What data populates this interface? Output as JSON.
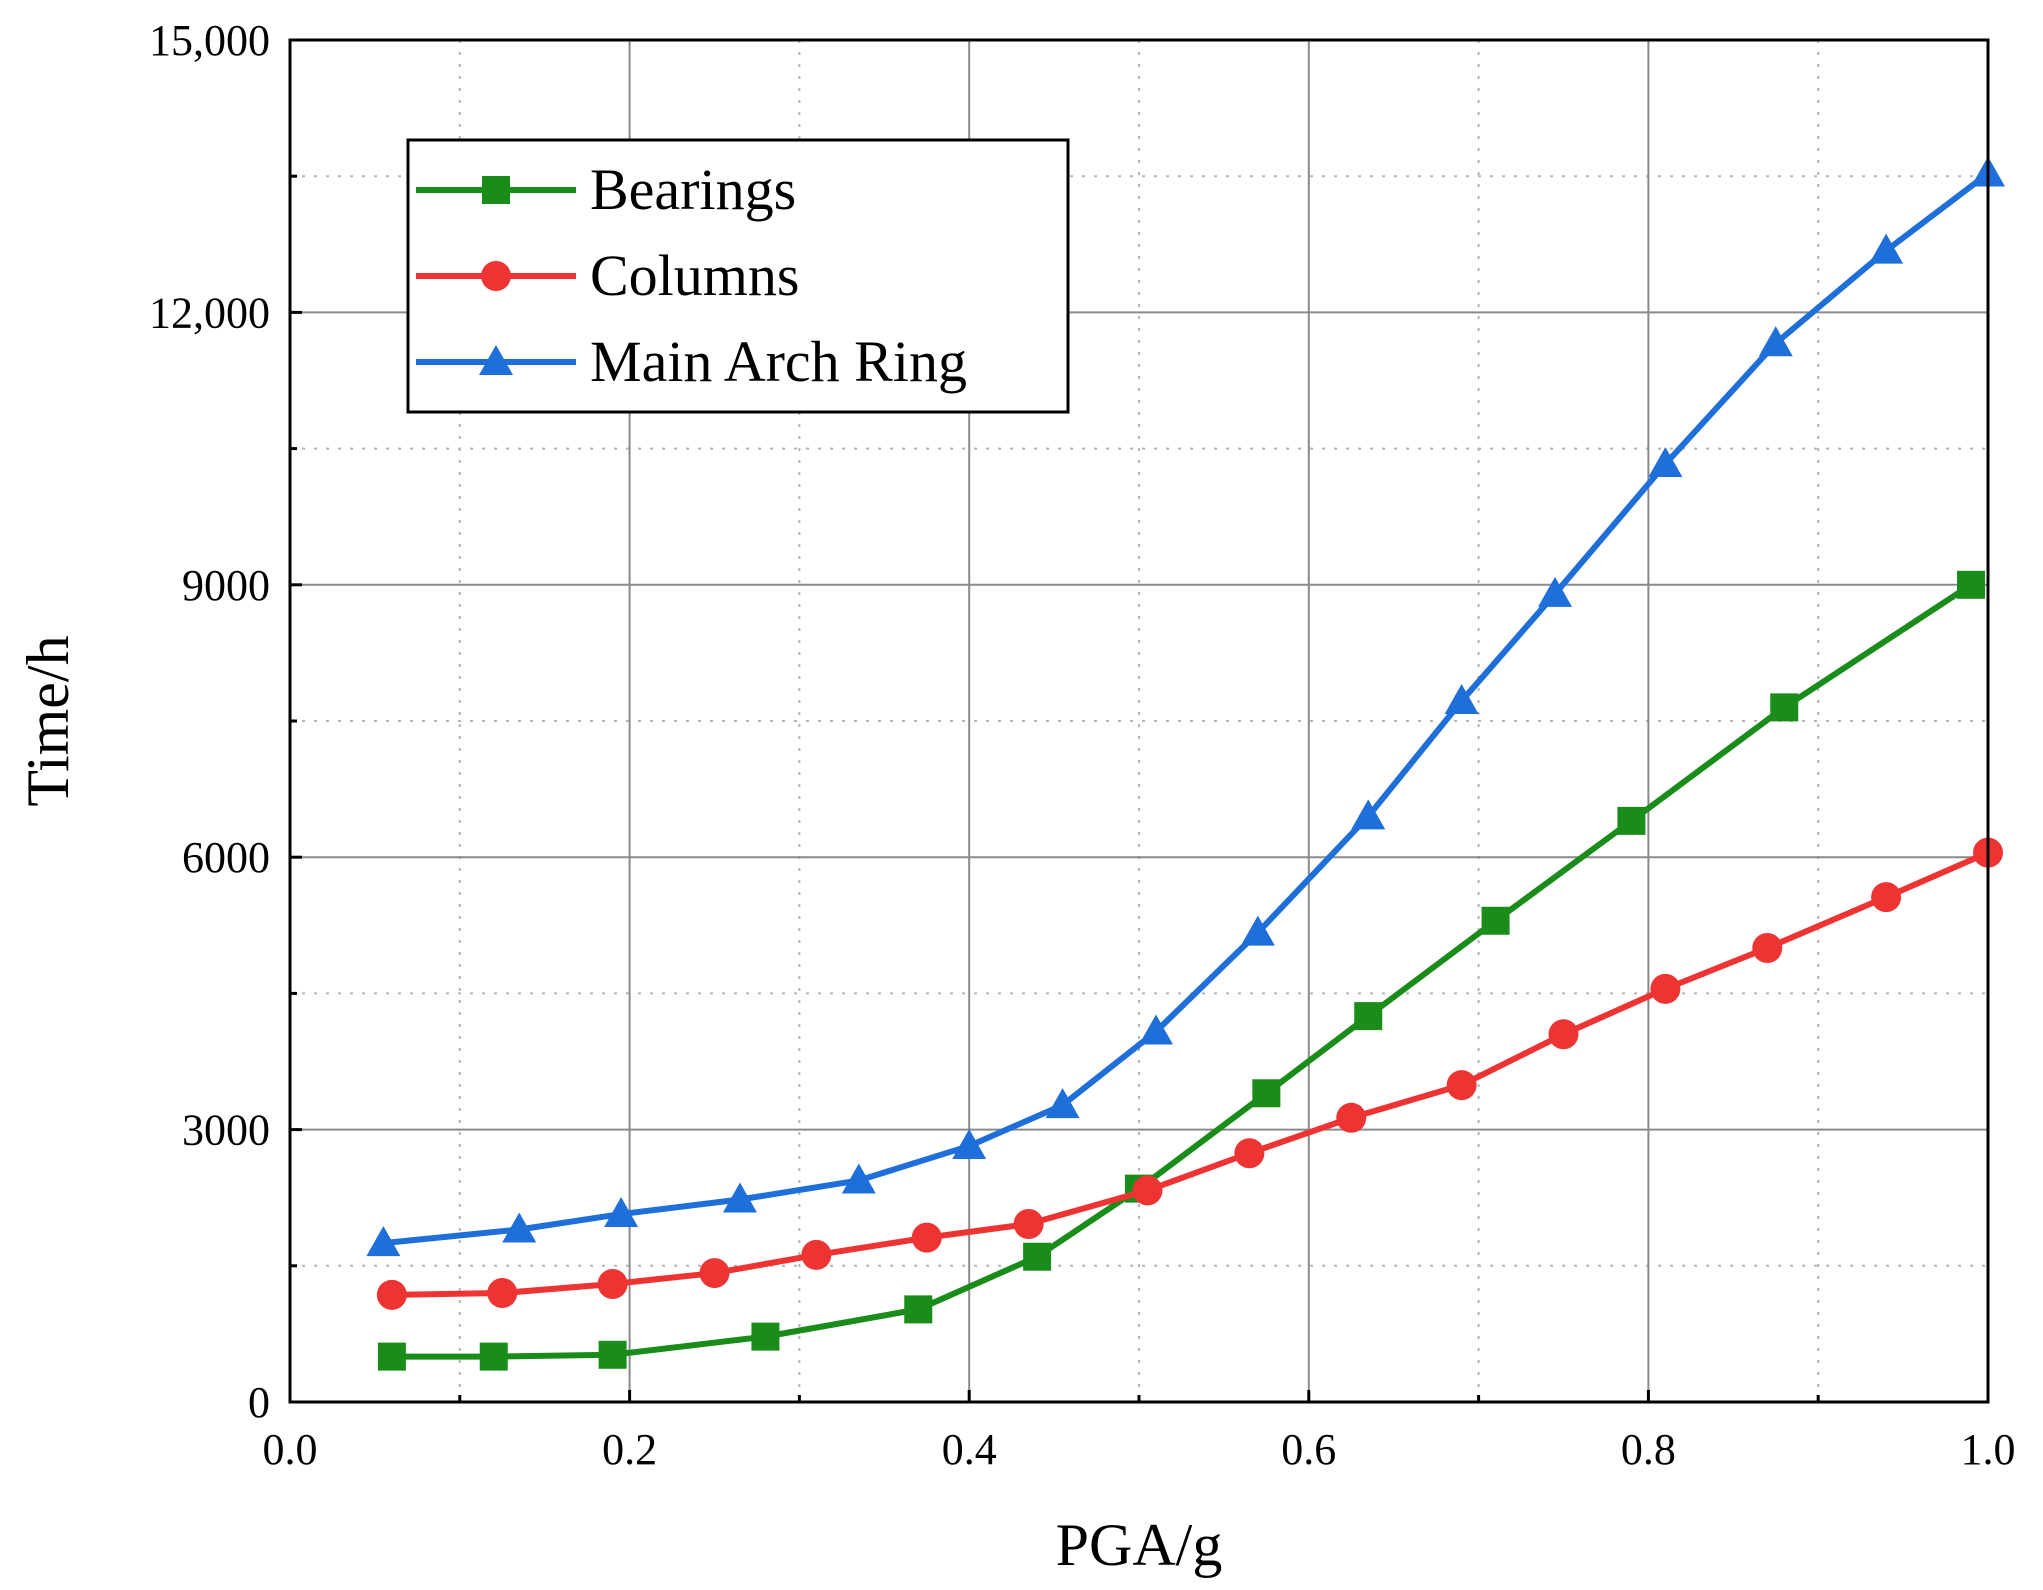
{
  "chart_data": {
    "type": "line",
    "title": "",
    "xlabel": "PGA/g",
    "ylabel": "Time/h",
    "xlim": [
      0.0,
      1.0
    ],
    "ylim": [
      0,
      15000
    ],
    "x_ticks": [
      0.0,
      0.2,
      0.4,
      0.6,
      0.8,
      1.0
    ],
    "x_tick_labels": [
      "0.0",
      "0.2",
      "0.4",
      "0.6",
      "0.8",
      "1.0"
    ],
    "y_ticks": [
      0,
      3000,
      6000,
      9000,
      12000,
      15000
    ],
    "y_tick_labels": [
      "0",
      "3000",
      "6000",
      "9000",
      "12,000",
      "15,000"
    ],
    "grid": true,
    "legend_position": "top-left",
    "series": [
      {
        "name": "Bearings",
        "color": "#1a8c1a",
        "marker": "square",
        "x": [
          0.06,
          0.12,
          0.19,
          0.28,
          0.37,
          0.44,
          0.5,
          0.575,
          0.635,
          0.71,
          0.79,
          0.88,
          0.99
        ],
        "y": [
          500,
          500,
          520,
          720,
          1020,
          1600,
          2350,
          3400,
          4250,
          5300,
          6400,
          7650,
          9000
        ]
      },
      {
        "name": "Columns",
        "color": "#ee3333",
        "marker": "circle",
        "x": [
          0.06,
          0.125,
          0.19,
          0.25,
          0.31,
          0.375,
          0.435,
          0.505,
          0.565,
          0.625,
          0.69,
          0.75,
          0.81,
          0.87,
          0.94,
          1.0
        ],
        "y": [
          1180,
          1200,
          1300,
          1420,
          1620,
          1810,
          1960,
          2330,
          2740,
          3130,
          3490,
          4050,
          4550,
          5000,
          5560,
          6050
        ]
      },
      {
        "name": "Main Arch Ring",
        "color": "#1e6fd9",
        "marker": "triangle",
        "x": [
          0.055,
          0.135,
          0.195,
          0.265,
          0.335,
          0.4,
          0.455,
          0.51,
          0.57,
          0.635,
          0.69,
          0.745,
          0.81,
          0.875,
          0.94,
          1.0
        ],
        "y": [
          1750,
          1900,
          2070,
          2230,
          2440,
          2820,
          3270,
          4080,
          5170,
          6450,
          7720,
          8900,
          10330,
          11660,
          12680,
          13530
        ]
      }
    ]
  }
}
